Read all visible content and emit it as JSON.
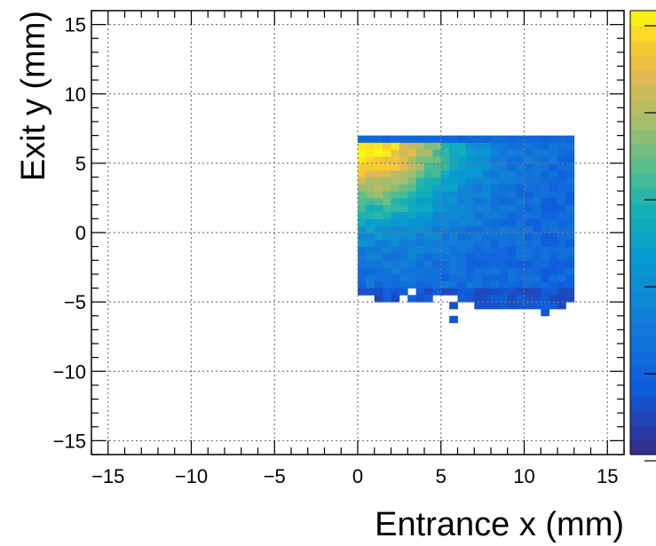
{
  "chart_data": {
    "type": "heatmap",
    "xlabel": "Entrance x (mm)",
    "ylabel": "Exit y (mm)",
    "xlim": [
      -16,
      16
    ],
    "ylim": [
      -16,
      16
    ],
    "x_ticks": [
      "−15",
      "−10",
      "−5",
      "0",
      "5",
      "10",
      "15"
    ],
    "x_tick_values": [
      -15,
      -10,
      -5,
      0,
      5,
      10,
      15
    ],
    "y_ticks": [
      "−15",
      "−10",
      "−5",
      "0",
      "5",
      "10",
      "15"
    ],
    "y_tick_values": [
      -15,
      -10,
      -5,
      0,
      5,
      10,
      15
    ],
    "grid": true,
    "colorscale": "parula",
    "bin_size_mm": 0.5,
    "colorbar": true,
    "data_region": {
      "x_min": 0,
      "x_max": 12.75,
      "y_min": -4.5,
      "y_max": 6.75
    },
    "extra_bins": [
      [
        0.0,
        -4.5
      ],
      [
        0.5,
        -4.5
      ],
      [
        1.0,
        -4.5
      ],
      [
        1.5,
        -4.5
      ],
      [
        2.0,
        -4.5
      ],
      [
        2.5,
        -4.5
      ],
      [
        3.5,
        -4.5
      ],
      [
        4.0,
        -4.5
      ],
      [
        4.5,
        -4.5
      ],
      [
        5.0,
        -4.5
      ],
      [
        5.5,
        -4.5
      ],
      [
        6.0,
        -4.5
      ],
      [
        6.5,
        -4.5
      ],
      [
        7.0,
        -4.5
      ],
      [
        7.5,
        -4.5
      ],
      [
        8.0,
        -4.5
      ],
      [
        8.5,
        -4.5
      ],
      [
        9.0,
        -4.5
      ],
      [
        9.5,
        -4.5
      ],
      [
        10.0,
        -4.5
      ],
      [
        10.5,
        -4.5
      ],
      [
        11.0,
        -4.5
      ],
      [
        11.5,
        -4.5
      ],
      [
        12.0,
        -4.5
      ],
      [
        12.5,
        -4.5
      ],
      [
        1.0,
        -5.0
      ],
      [
        1.5,
        -5.0
      ],
      [
        2.0,
        -5.0
      ],
      [
        3.0,
        -5.0
      ],
      [
        3.5,
        -5.0
      ],
      [
        4.0,
        -5.0
      ],
      [
        6.0,
        -5.0
      ],
      [
        6.5,
        -5.0
      ],
      [
        7.0,
        -5.0
      ],
      [
        7.5,
        -5.0
      ],
      [
        8.0,
        -5.0
      ],
      [
        8.5,
        -5.0
      ],
      [
        9.0,
        -5.0
      ],
      [
        9.5,
        -5.0
      ],
      [
        10.0,
        -5.0
      ],
      [
        10.5,
        -5.0
      ],
      [
        11.0,
        -5.0
      ],
      [
        11.5,
        -5.0
      ],
      [
        12.0,
        -5.0
      ],
      [
        12.5,
        -5.0
      ],
      [
        5.5,
        -5.5
      ],
      [
        7.0,
        -5.5
      ],
      [
        7.5,
        -5.5
      ],
      [
        8.0,
        -5.5
      ],
      [
        8.5,
        -5.5
      ],
      [
        9.0,
        -5.5
      ],
      [
        9.5,
        -5.5
      ],
      [
        10.0,
        -5.5
      ],
      [
        10.5,
        -5.5
      ],
      [
        11.0,
        -5.5
      ],
      [
        11.5,
        -5.5
      ],
      [
        12.0,
        -5.5
      ],
      [
        11.0,
        -6.0
      ],
      [
        5.5,
        -6.5
      ]
    ]
  }
}
